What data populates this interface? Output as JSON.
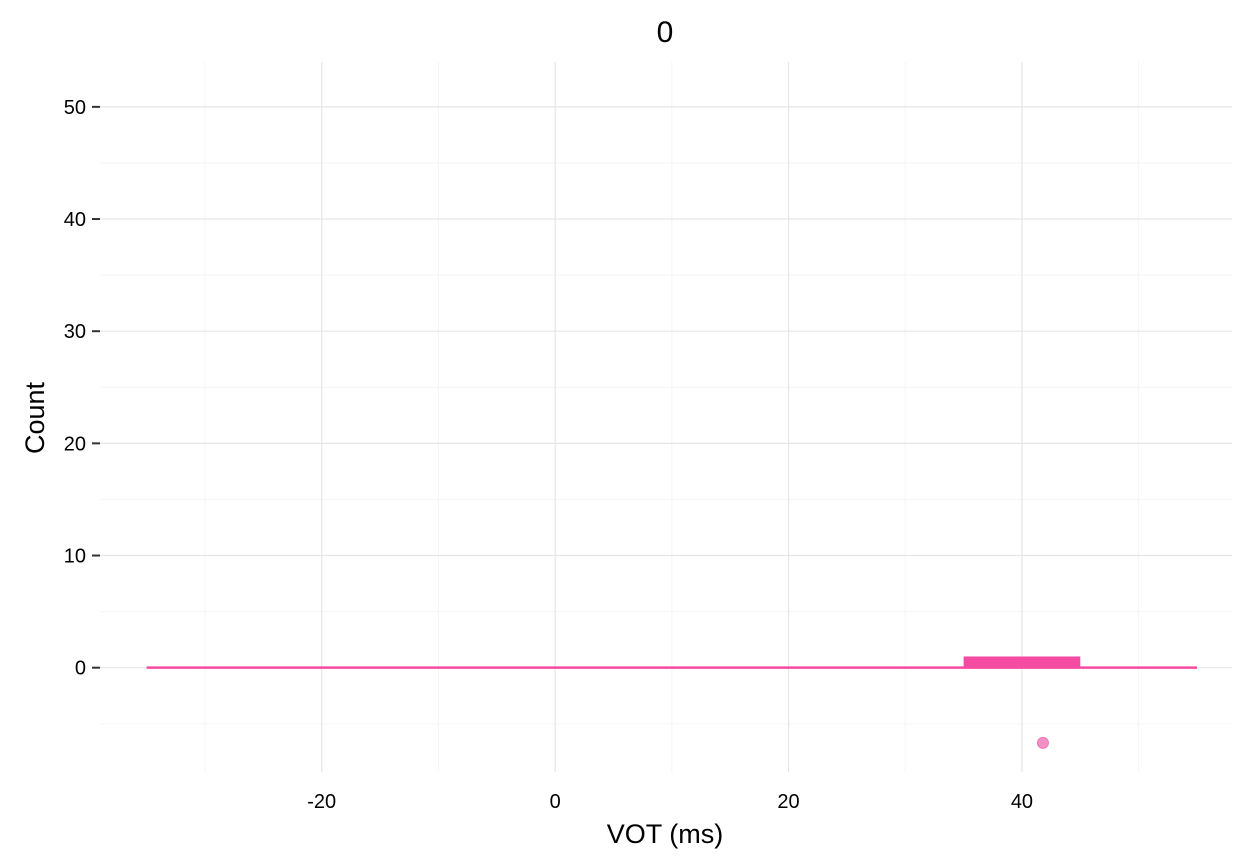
{
  "chart_data": {
    "type": "histogram",
    "title": "0",
    "xlabel": "VOT (ms)",
    "ylabel": "Count",
    "xlim": [
      -39,
      58
    ],
    "ylim": [
      -9.3,
      54
    ],
    "x_ticks": [
      -20,
      0,
      20,
      40
    ],
    "y_ticks": [
      0,
      10,
      20,
      30,
      40,
      50
    ],
    "x_tick_labels": [
      "-20",
      "0",
      "20",
      "40"
    ],
    "y_tick_labels": [
      "0",
      "10",
      "20",
      "30",
      "40",
      "50"
    ],
    "grid": true,
    "legend": "none",
    "baseline": {
      "x_start": -35,
      "x_end": 55,
      "y": 0
    },
    "bins": [
      {
        "x_start": 35,
        "x_end": 45,
        "count": 1
      }
    ],
    "points": [
      {
        "x": 41.8,
        "y": -6.7
      }
    ],
    "colors": {
      "series": "#f54ba3",
      "point": "#f48fc4",
      "grid_major": "#e6e6e6",
      "grid_minor": "#f5f5f5"
    }
  }
}
